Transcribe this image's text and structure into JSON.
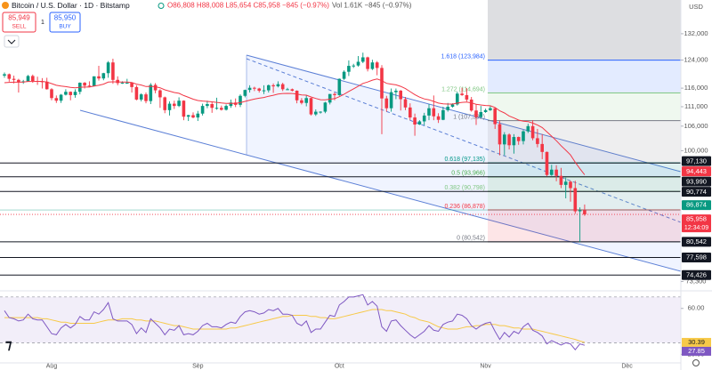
{
  "header": {
    "symbol": "Bitcoin / U.S. Dollar · 1D · Bitstamp",
    "ohlc": "O86,808 H88,008 L85,654 C85,958 −845 (−0.97%)",
    "volume": "Vol 1.61K −845 (−0.97%)"
  },
  "trade": {
    "sell_price": "85,949",
    "sell": "SELL",
    "spread": "1",
    "buy_price": "85,950",
    "buy": "BUY"
  },
  "chart_data": {
    "type": "candlestick",
    "currency": "USD",
    "up_color": "#089981",
    "down_color": "#f23645",
    "log": true,
    "ylim": [
      72000,
      143000
    ],
    "yticks": [
      {
        "value": 132000,
        "label": "132,000"
      },
      {
        "value": 124000,
        "label": "124,000"
      },
      {
        "value": 116000,
        "label": "116,000"
      },
      {
        "value": 111000,
        "label": "111,000"
      },
      {
        "value": 106000,
        "label": "106,000"
      },
      {
        "value": 100000,
        "label": "100,000"
      },
      {
        "value": 97000,
        "label": "97,000"
      },
      {
        "value": 73300,
        "label": "73,300"
      }
    ],
    "xticks": [
      {
        "value": 10,
        "label": "Aug"
      },
      {
        "value": 41,
        "label": "Sep"
      },
      {
        "value": 71,
        "label": "Oct"
      },
      {
        "value": 102,
        "label": "Nov"
      },
      {
        "value": 132,
        "label": "Dec"
      }
    ],
    "open": [
      119500,
      119900,
      118600,
      118300,
      117600,
      117900,
      119400,
      118000,
      117900,
      117800,
      115700,
      113300,
      112600,
      114200,
      115000,
      114100,
      115000,
      117500,
      116700,
      116500,
      119300,
      118700,
      120200,
      123300,
      118300,
      117400,
      117500,
      117500,
      116300,
      112900,
      114300,
      112500,
      116900,
      115400,
      113500,
      110100,
      111800,
      111200,
      112600,
      108400,
      108800,
      108200,
      109200,
      111200,
      111700,
      110700,
      110700,
      110200,
      111200,
      112100,
      111500,
      113900,
      115500,
      116100,
      115900,
      115300,
      115400,
      116800,
      116500,
      117100,
      115700,
      115700,
      115300,
      112700,
      112000,
      113300,
      109000,
      109700,
      109700,
      112100,
      114400,
      114100,
      118600,
      120600,
      122300,
      122400,
      123500,
      124800,
      121400,
      123300,
      121700,
      113200,
      110600,
      114900,
      115300,
      113000,
      110800,
      108200,
      106400,
      107200,
      108700,
      110600,
      108500,
      107600,
      110100,
      111000,
      111600,
      114500,
      114100,
      112900,
      110000,
      108300,
      109600,
      110100,
      110600,
      106500,
      101500,
      103900,
      101300,
      103300,
      102300,
      104700,
      106000,
      103000,
      101600,
      99700,
      94400,
      95600,
      94200,
      92200,
      92900,
      91500,
      86600,
      86808
    ],
    "high": [
      120400,
      120100,
      119500,
      118600,
      118300,
      119700,
      119800,
      119200,
      118800,
      118900,
      116000,
      114000,
      114400,
      115700,
      115100,
      115700,
      117600,
      117700,
      117900,
      119300,
      122300,
      120300,
      123700,
      124400,
      119300,
      117900,
      118600,
      117600,
      116800,
      114600,
      114800,
      117400,
      117400,
      115700,
      113700,
      112400,
      112600,
      113500,
      112700,
      108900,
      109500,
      109900,
      111800,
      112600,
      112200,
      113400,
      111300,
      111600,
      112900,
      113200,
      114300,
      115600,
      116800,
      116400,
      116100,
      116800,
      117000,
      117300,
      117900,
      117500,
      116100,
      115900,
      115400,
      113300,
      114000,
      113400,
      110300,
      109800,
      112300,
      114400,
      114800,
      118700,
      121000,
      123900,
      122900,
      125200,
      126200,
      125000,
      124100,
      123700,
      122500,
      113900,
      115900,
      115900,
      115500,
      113600,
      111900,
      109200,
      107500,
      109400,
      111700,
      114000,
      109300,
      111000,
      112000,
      111900,
      115000,
      116100,
      116000,
      113600,
      111600,
      111200,
      110500,
      111200,
      110700,
      107300,
      104500,
      104200,
      104000,
      103400,
      105000,
      106600,
      107500,
      105300,
      104000,
      99800,
      96700,
      96600,
      96000,
      93800,
      93100,
      93100,
      87400,
      88008
    ],
    "low": [
      118900,
      117800,
      117300,
      114800,
      117200,
      117800,
      117500,
      116900,
      115900,
      115600,
      112700,
      112000,
      112000,
      114000,
      112700,
      113400,
      114300,
      115900,
      116300,
      116500,
      118100,
      118200,
      118900,
      117200,
      116800,
      117200,
      117200,
      114800,
      112700,
      112400,
      111900,
      111700,
      114600,
      110700,
      109300,
      108700,
      110400,
      110900,
      107500,
      107300,
      108000,
      107300,
      108700,
      110600,
      109400,
      110200,
      110000,
      110000,
      110700,
      110900,
      110900,
      113500,
      114800,
      115200,
      114800,
      114400,
      114800,
      114700,
      116200,
      115200,
      115500,
      115100,
      111900,
      111600,
      111100,
      108700,
      108600,
      109200,
      109300,
      111600,
      112700,
      113900,
      118300,
      119400,
      121700,
      122100,
      123100,
      120700,
      121100,
      119600,
      104000,
      109700,
      109700,
      113000,
      110000,
      110100,
      107500,
      103600,
      106300,
      106200,
      107500,
      107500,
      106800,
      107500,
      109700,
      110800,
      111300,
      113900,
      112400,
      109700,
      106300,
      108100,
      109400,
      109900,
      105300,
      98900,
      98900,
      100300,
      99300,
      101400,
      101500,
      104300,
      102500,
      100800,
      98000,
      94100,
      94200,
      93000,
      91500,
      89300,
      88600,
      86100,
      80542,
      85654
    ],
    "close": [
      119900,
      118600,
      118300,
      117600,
      117900,
      119400,
      118000,
      117900,
      117800,
      115700,
      113300,
      112600,
      114200,
      115000,
      114100,
      115000,
      117500,
      116700,
      116500,
      119300,
      118700,
      120200,
      123300,
      118300,
      117400,
      117500,
      117500,
      116300,
      112900,
      114300,
      112500,
      116900,
      115400,
      113500,
      110100,
      111800,
      111200,
      112600,
      108400,
      108800,
      108200,
      109200,
      111200,
      111700,
      110700,
      110700,
      110200,
      111200,
      112100,
      111500,
      113900,
      115500,
      116100,
      115900,
      115300,
      115400,
      116800,
      116500,
      117100,
      115700,
      115700,
      115300,
      112700,
      112000,
      113300,
      109000,
      109700,
      109700,
      112100,
      114400,
      114100,
      118600,
      120600,
      122300,
      122400,
      123500,
      124800,
      121400,
      123300,
      121700,
      113200,
      110600,
      114900,
      115300,
      113000,
      110800,
      108200,
      106400,
      107200,
      108700,
      110600,
      108500,
      107600,
      110100,
      111000,
      111600,
      114500,
      114100,
      112900,
      110000,
      108300,
      109600,
      110100,
      110600,
      106500,
      101500,
      103900,
      101300,
      103300,
      102300,
      104700,
      106000,
      103000,
      101600,
      99700,
      94400,
      95600,
      94200,
      92200,
      92900,
      91500,
      86600,
      86803,
      85958
    ],
    "ema": {
      "color": "#f23645",
      "values": [
        117500,
        117600,
        117650,
        117650,
        117680,
        117850,
        117860,
        117870,
        117870,
        117670,
        117250,
        116800,
        116560,
        116430,
        116210,
        116100,
        116250,
        116290,
        116290,
        116570,
        116780,
        117100,
        117690,
        117750,
        117720,
        117700,
        117690,
        117560,
        117120,
        116860,
        116450,
        116500,
        116400,
        116100,
        115530,
        115180,
        114800,
        114600,
        113980,
        113500,
        113000,
        112640,
        112500,
        112420,
        112280,
        112150,
        111980,
        111900,
        111920,
        111890,
        112080,
        112400,
        112750,
        113040,
        113260,
        113470,
        113800,
        114070,
        114380,
        114540,
        114560,
        114540,
        114370,
        114160,
        114080,
        113600,
        113200,
        112860,
        112830,
        113010,
        113160,
        113680,
        114340,
        115100,
        115800,
        116540,
        117310,
        117700,
        118220,
        118550,
        118080,
        117340,
        117110,
        116920,
        116500,
        115890,
        115060,
        114220,
        113550,
        113070,
        112830,
        112420,
        111960,
        111780,
        111700,
        111690,
        111950,
        112140,
        112210,
        112000,
        111650,
        111460,
        111330,
        111260,
        110810,
        109930,
        109360,
        108590,
        108090,
        107540,
        107270,
        107150,
        106760,
        106270,
        105640,
        104570,
        103500,
        102400,
        101200,
        100100,
        99000,
        97300,
        95800,
        94443
      ]
    },
    "levels": [
      {
        "value": 97130,
        "label": "97,130",
        "color": "#131722",
        "style": "solid"
      },
      {
        "value": 94443,
        "label": "94,443",
        "color": "#f23645",
        "style": "none"
      },
      {
        "value": 93990,
        "label": "93,990",
        "color": "#131722",
        "style": "solid"
      },
      {
        "value": 90774,
        "label": "90,774",
        "color": "#131722",
        "style": "solid"
      },
      {
        "value": 86874,
        "label": "86,874",
        "color": "#089981",
        "style": "thin"
      },
      {
        "value": 85958,
        "label": "85,958",
        "color": "#f23645",
        "style": "dotted"
      },
      {
        "value": 80542,
        "label": "80,542",
        "color": "#131722",
        "style": "solid"
      },
      {
        "value": 77598,
        "label": "77,598",
        "color": "#131722",
        "style": "solid"
      },
      {
        "value": 74426,
        "label": "74,426",
        "color": "#131722",
        "style": "solid"
      }
    ],
    "countdown": "12:34:09",
    "fib": [
      {
        "value": 123984,
        "label": "1.618 (123,984)",
        "color": "#2962ff"
      },
      {
        "value": 114694,
        "label": "1.272 (114,694)",
        "color": "#81c784"
      },
      {
        "value": 107391,
        "label": "1 (107,391)",
        "color": "#787b86"
      },
      {
        "value": 97135,
        "label": "0.618 (97,135)",
        "color": "#009688"
      },
      {
        "value": 93966,
        "label": "0.5 (93,966)",
        "color": "#4caf50"
      },
      {
        "value": 90798,
        "label": "0.382 (90,798)",
        "color": "#81c784"
      },
      {
        "value": 86878,
        "label": "0.236 (86,878)",
        "color": "#f23645"
      },
      {
        "value": 80542,
        "label": "0 (80,542)",
        "color": "#787b86"
      }
    ]
  },
  "rsi": {
    "type": "line",
    "ylim": [
      12.5,
      73
    ],
    "yticks": [
      {
        "value": 60,
        "label": "60.00"
      },
      {
        "value": 20,
        "label": "20.00"
      }
    ],
    "bands": [
      70,
      30
    ],
    "series": [
      {
        "color": "#7e57c2",
        "values": [
          58,
          52,
          51,
          49,
          50,
          55,
          51,
          50,
          50,
          44,
          38,
          37,
          43,
          46,
          43,
          46,
          53,
          50,
          50,
          57,
          55,
          59,
          65,
          51,
          49,
          49,
          49,
          46,
          38,
          43,
          39,
          51,
          47,
          43,
          37,
          42,
          41,
          45,
          37,
          38,
          37,
          40,
          45,
          47,
          44,
          44,
          43,
          46,
          48,
          47,
          53,
          57,
          58,
          57,
          55,
          56,
          59,
          58,
          60,
          55,
          55,
          54,
          47,
          45,
          49,
          39,
          42,
          42,
          48,
          54,
          53,
          63,
          66,
          70,
          70,
          71,
          72,
          63,
          66,
          62,
          44,
          40,
          49,
          50,
          45,
          41,
          37,
          34,
          37,
          40,
          45,
          41,
          40,
          46,
          48,
          49,
          55,
          54,
          51,
          45,
          42,
          45,
          47,
          48,
          40,
          33,
          39,
          35,
          40,
          38,
          44,
          47,
          41,
          39,
          36,
          29,
          32,
          30,
          28,
          30,
          29,
          24,
          29,
          27.85
        ]
      },
      {
        "color": "#f7c948",
        "values": [
          52,
          52,
          52,
          52,
          52,
          52,
          52,
          52,
          51,
          51,
          50,
          49,
          48,
          48,
          47,
          47,
          47,
          47,
          47,
          47,
          48,
          49,
          50,
          50,
          50,
          51,
          51,
          51,
          50,
          50,
          49,
          49,
          49,
          48,
          47,
          46,
          45,
          45,
          44,
          43,
          42,
          42,
          42,
          42,
          42,
          42,
          42,
          42,
          43,
          43,
          44,
          45,
          46,
          47,
          48,
          49,
          50,
          51,
          52,
          53,
          53,
          54,
          54,
          54,
          54,
          53,
          53,
          52,
          52,
          51,
          51,
          52,
          53,
          54,
          55,
          56,
          57,
          58,
          59,
          59,
          59,
          58,
          58,
          57,
          56,
          55,
          53,
          52,
          50,
          49,
          48,
          46,
          44,
          43,
          42,
          42,
          42,
          43,
          44,
          44,
          45,
          45,
          46,
          46,
          46,
          45,
          45,
          44,
          43,
          43,
          42,
          42,
          42,
          41,
          40,
          39,
          38,
          37,
          36,
          35,
          34,
          33,
          31.5,
          30.39
        ]
      }
    ]
  }
}
